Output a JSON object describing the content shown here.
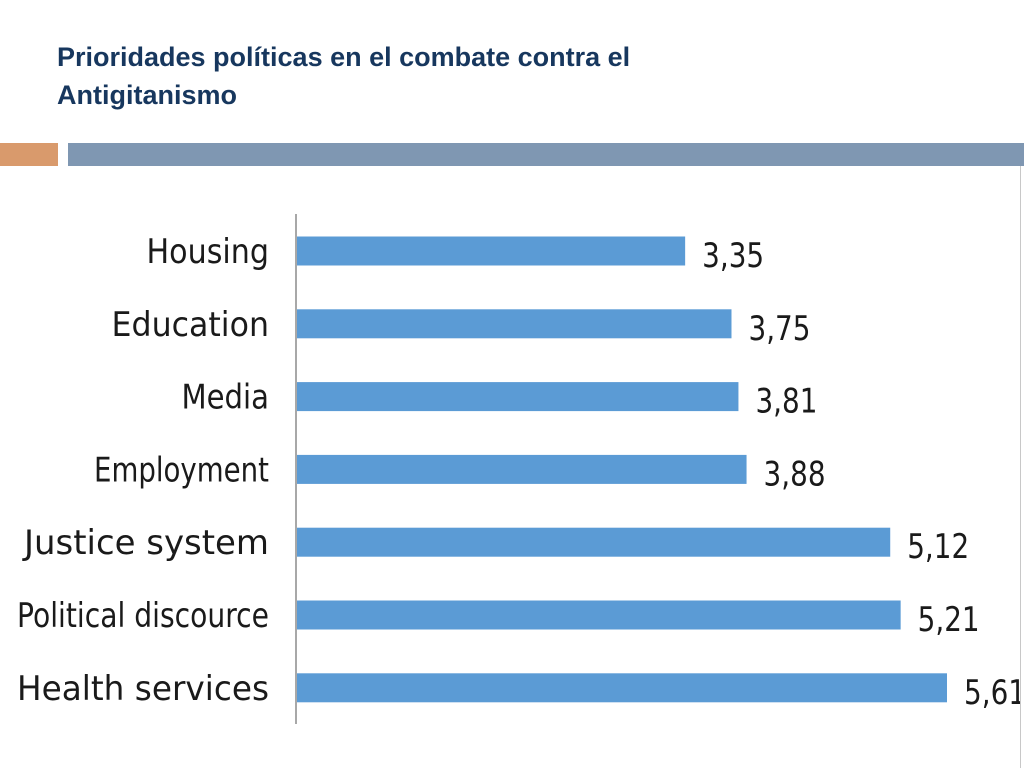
{
  "slide": {
    "title_line1": "Prioridades políticas en el combate contra el",
    "title_line2": "Antigitanismo",
    "colors": {
      "title": "#17375e",
      "accent_orange": "#d99a6c",
      "accent_blue": "#7f97b2"
    }
  },
  "chart_data": {
    "type": "bar",
    "orientation": "horizontal",
    "categories": [
      "Housing",
      "Education",
      "Media",
      "Employment",
      "Justice system",
      "Political discource",
      "Health services"
    ],
    "values": [
      3.35,
      3.75,
      3.81,
      3.88,
      5.12,
      5.21,
      5.61
    ],
    "value_labels": [
      "3,35",
      "3,75",
      "3,81",
      "3,88",
      "5,12",
      "5,21",
      "5,61"
    ],
    "title": "",
    "xlabel": "",
    "ylabel": "",
    "xlim": [
      0,
      5.61
    ],
    "grid": false,
    "bar_color": "#5b9bd5"
  }
}
